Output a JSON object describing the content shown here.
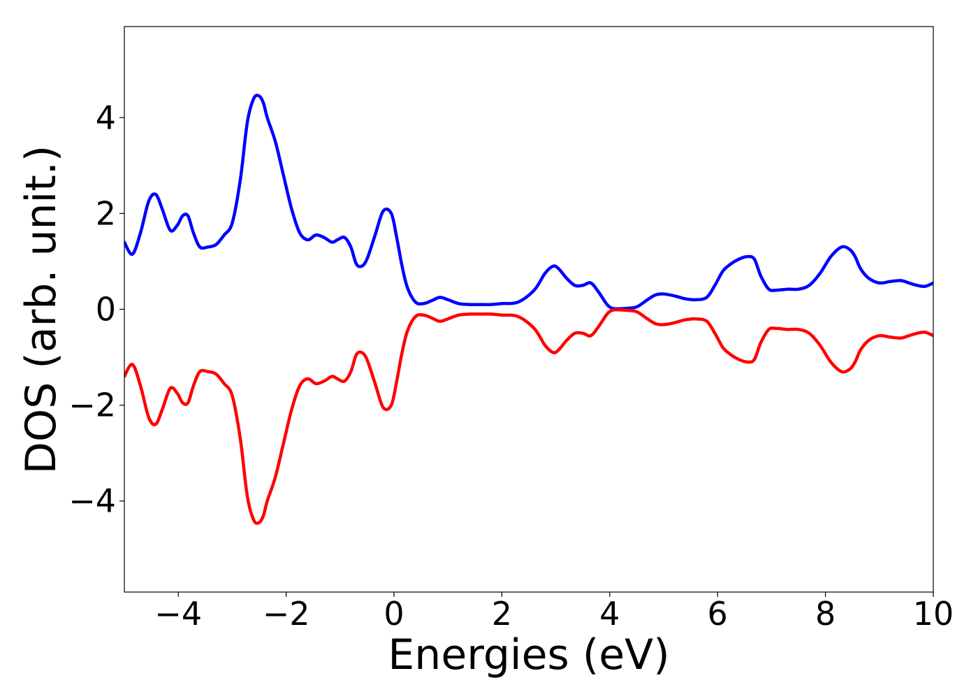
{
  "chart_data": {
    "type": "line",
    "title": "",
    "xlabel": "Energies (eV)",
    "ylabel": "DOS (arb. unit.)",
    "xlim": [
      -5,
      10
    ],
    "ylim": [
      -5.9,
      5.9
    ],
    "grid": false,
    "legend": "none",
    "xticks": [
      -4,
      -2,
      0,
      2,
      4,
      6,
      8,
      10
    ],
    "yticks": [
      -4,
      -2,
      0,
      2,
      4
    ],
    "xtick_labels": [
      "−4",
      "−2",
      "0",
      "2",
      "4",
      "6",
      "8",
      "10"
    ],
    "ytick_labels": [
      "−4",
      "−2",
      "0",
      "2",
      "4"
    ],
    "series": [
      {
        "color": "#0000ff",
        "x": [
          -5.0,
          -4.85,
          -4.7,
          -4.55,
          -4.42,
          -4.3,
          -4.15,
          -4.02,
          -3.92,
          -3.82,
          -3.72,
          -3.6,
          -3.45,
          -3.3,
          -3.15,
          -3.0,
          -2.85,
          -2.72,
          -2.6,
          -2.5,
          -2.42,
          -2.35,
          -2.2,
          -2.05,
          -1.9,
          -1.75,
          -1.6,
          -1.45,
          -1.3,
          -1.15,
          -1.05,
          -0.92,
          -0.8,
          -0.7,
          -0.6,
          -0.5,
          -0.35,
          -0.2,
          -0.05,
          0.05,
          0.15,
          0.25,
          0.4,
          0.55,
          0.7,
          0.85,
          1.0,
          1.2,
          1.4,
          1.6,
          1.8,
          2.0,
          2.3,
          2.6,
          2.8,
          2.95,
          3.05,
          3.2,
          3.35,
          3.5,
          3.65,
          3.8,
          3.95,
          4.05,
          4.15,
          4.3,
          4.5,
          4.7,
          4.85,
          5.0,
          5.2,
          5.4,
          5.6,
          5.8,
          5.95,
          6.1,
          6.25,
          6.4,
          6.55,
          6.68,
          6.8,
          6.95,
          7.1,
          7.3,
          7.5,
          7.7,
          7.9,
          8.1,
          8.3,
          8.45,
          8.55,
          8.65,
          8.8,
          9.0,
          9.2,
          9.4,
          9.55,
          9.7,
          9.85,
          10.0
        ],
        "y": [
          1.4,
          1.15,
          1.6,
          2.25,
          2.4,
          2.1,
          1.65,
          1.75,
          1.95,
          1.95,
          1.6,
          1.3,
          1.3,
          1.35,
          1.55,
          1.8,
          2.7,
          3.9,
          4.4,
          4.45,
          4.3,
          4.0,
          3.5,
          2.8,
          2.1,
          1.6,
          1.45,
          1.55,
          1.5,
          1.4,
          1.45,
          1.5,
          1.3,
          0.95,
          0.9,
          1.05,
          1.55,
          2.05,
          2.0,
          1.5,
          0.9,
          0.45,
          0.15,
          0.12,
          0.18,
          0.25,
          0.2,
          0.12,
          0.1,
          0.1,
          0.1,
          0.12,
          0.15,
          0.4,
          0.75,
          0.9,
          0.85,
          0.65,
          0.5,
          0.5,
          0.55,
          0.35,
          0.1,
          0.02,
          0.01,
          0.02,
          0.05,
          0.2,
          0.3,
          0.32,
          0.28,
          0.22,
          0.2,
          0.25,
          0.5,
          0.8,
          0.95,
          1.05,
          1.1,
          1.05,
          0.7,
          0.42,
          0.4,
          0.42,
          0.42,
          0.5,
          0.75,
          1.1,
          1.3,
          1.25,
          1.1,
          0.85,
          0.65,
          0.55,
          0.58,
          0.6,
          0.55,
          0.5,
          0.48,
          0.55
        ]
      },
      {
        "color": "#ff0000",
        "x": [
          -5.0,
          -4.85,
          -4.7,
          -4.55,
          -4.42,
          -4.3,
          -4.15,
          -4.02,
          -3.92,
          -3.82,
          -3.72,
          -3.6,
          -3.45,
          -3.3,
          -3.15,
          -3.0,
          -2.85,
          -2.72,
          -2.6,
          -2.5,
          -2.42,
          -2.35,
          -2.2,
          -2.05,
          -1.9,
          -1.75,
          -1.6,
          -1.45,
          -1.3,
          -1.15,
          -1.05,
          -0.92,
          -0.8,
          -0.7,
          -0.6,
          -0.5,
          -0.35,
          -0.2,
          -0.05,
          0.05,
          0.15,
          0.25,
          0.4,
          0.55,
          0.7,
          0.85,
          1.0,
          1.2,
          1.4,
          1.6,
          1.8,
          2.0,
          2.3,
          2.6,
          2.8,
          2.95,
          3.05,
          3.2,
          3.35,
          3.5,
          3.65,
          3.8,
          3.95,
          4.05,
          4.15,
          4.3,
          4.5,
          4.7,
          4.85,
          5.0,
          5.2,
          5.4,
          5.6,
          5.8,
          5.95,
          6.1,
          6.25,
          6.4,
          6.55,
          6.68,
          6.8,
          6.95,
          7.1,
          7.3,
          7.5,
          7.7,
          7.9,
          8.1,
          8.3,
          8.45,
          8.55,
          8.65,
          8.8,
          9.0,
          9.2,
          9.4,
          9.55,
          9.7,
          9.85,
          10.0
        ],
        "y": [
          -1.4,
          -1.15,
          -1.6,
          -2.25,
          -2.4,
          -2.1,
          -1.65,
          -1.75,
          -1.95,
          -1.95,
          -1.6,
          -1.3,
          -1.3,
          -1.35,
          -1.55,
          -1.8,
          -2.7,
          -3.9,
          -4.4,
          -4.45,
          -4.3,
          -4.0,
          -3.5,
          -2.8,
          -2.1,
          -1.6,
          -1.45,
          -1.55,
          -1.5,
          -1.4,
          -1.45,
          -1.5,
          -1.3,
          -0.95,
          -0.9,
          -1.05,
          -1.55,
          -2.05,
          -2.0,
          -1.5,
          -0.9,
          -0.45,
          -0.15,
          -0.12,
          -0.18,
          -0.25,
          -0.2,
          -0.12,
          -0.1,
          -0.1,
          -0.1,
          -0.12,
          -0.15,
          -0.4,
          -0.75,
          -0.9,
          -0.85,
          -0.65,
          -0.5,
          -0.5,
          -0.55,
          -0.35,
          -0.1,
          -0.02,
          -0.01,
          -0.02,
          -0.05,
          -0.2,
          -0.3,
          -0.32,
          -0.28,
          -0.22,
          -0.2,
          -0.25,
          -0.5,
          -0.8,
          -0.95,
          -1.05,
          -1.1,
          -1.05,
          -0.7,
          -0.42,
          -0.4,
          -0.42,
          -0.42,
          -0.5,
          -0.75,
          -1.1,
          -1.3,
          -1.25,
          -1.1,
          -0.85,
          -0.65,
          -0.55,
          -0.58,
          -0.6,
          -0.55,
          -0.5,
          -0.48,
          -0.55
        ]
      }
    ]
  }
}
